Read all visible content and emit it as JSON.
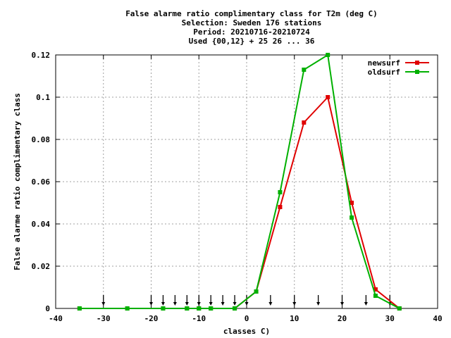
{
  "chart_data": {
    "type": "line",
    "title_lines": [
      "False alarme ratio complimentary class  for T2m (deg C)",
      "Selection: Sweden    176 stations",
      "Period: 20210716-20210724",
      "Used {00,12} + 25 26 ... 36"
    ],
    "xlabel": "classes C)",
    "ylabel": "False alarme ratio complimentary class",
    "xlim": [
      -40,
      40
    ],
    "ylim": [
      0,
      0.12
    ],
    "x_ticks": [
      "-40",
      "-30",
      "-20",
      "-10",
      "0",
      "10",
      "20",
      "30",
      "40"
    ],
    "y_ticks": [
      "0",
      "0.02",
      "0.04",
      "0.06",
      "0.08",
      "0.1",
      "0.12"
    ],
    "grid": true,
    "legend_position": "top-right",
    "class_limits": [
      -30,
      -20,
      -17.5,
      -15,
      -12.5,
      -10,
      -7.5,
      -5,
      -2.5,
      0,
      5,
      10,
      15,
      20,
      25,
      30
    ],
    "series": [
      {
        "name": "newsurf",
        "color": "#e00000",
        "x": [
          -35,
          -25,
          -17.5,
          -12.5,
          -10,
          -7.5,
          -2.5,
          2,
          7,
          12,
          17,
          22,
          27,
          32
        ],
        "y": [
          0,
          0,
          0,
          0,
          0,
          0,
          0,
          0.008,
          0.048,
          0.088,
          0.1,
          0.05,
          0.009,
          0
        ]
      },
      {
        "name": "oldsurf",
        "color": "#00b000",
        "x": [
          -35,
          -25,
          -17.5,
          -12.5,
          -10,
          -7.5,
          -2.5,
          2,
          7,
          12,
          17,
          22,
          27,
          32
        ],
        "y": [
          0,
          0,
          0,
          0,
          0,
          0,
          0,
          0.008,
          0.055,
          0.113,
          0.12,
          0.043,
          0.006,
          0
        ]
      }
    ]
  }
}
